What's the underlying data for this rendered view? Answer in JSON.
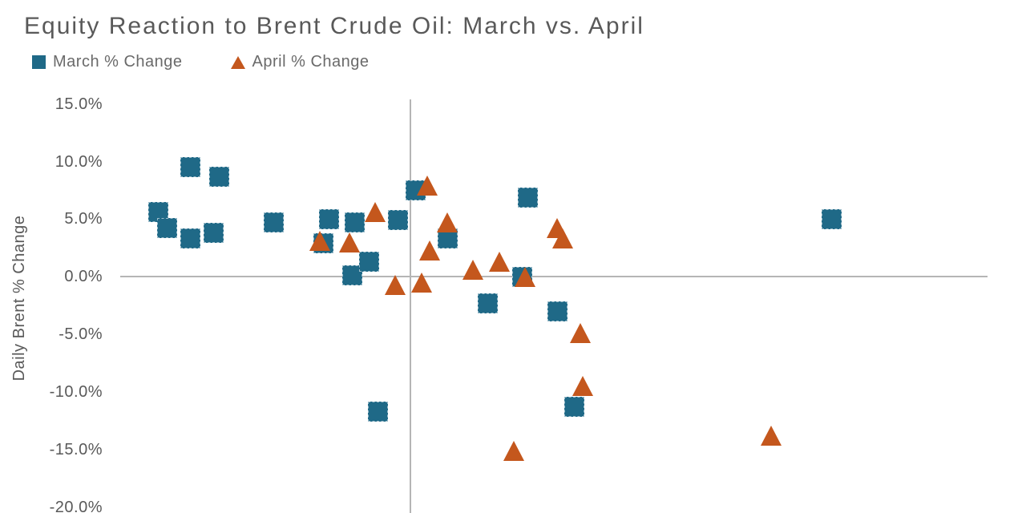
{
  "chart": {
    "title": "Equity Reaction to Brent Crude Oil: March vs. April",
    "y_axis_title": "Daily Brent % Change"
  },
  "legend": {
    "march_label": "March % Change",
    "april_label": "April % Change"
  },
  "colors": {
    "march_series": "#1F6987",
    "april_series": "#C4571D",
    "title_text": "#595959",
    "axis_text": "#595959",
    "gridline": "#B5B5B5"
  },
  "chart_data": {
    "type": "scatter",
    "title": "Equity Reaction to Brent Crude Oil: March vs. April",
    "xlabel": "",
    "ylabel": "Daily Brent % Change",
    "grid": false,
    "legend_position": "top-left",
    "x_axis": {
      "min": -10.3,
      "max": 20.0,
      "zero_gridline": true,
      "tick_labels_visible": false
    },
    "y_axis": {
      "min": -20.5,
      "max": 15.4,
      "zero_gridline": true,
      "ticks": [
        15,
        10,
        5,
        0,
        -5,
        -10,
        -15,
        -20
      ],
      "tick_labels": [
        "15.0%",
        "10.0%",
        "5.0%",
        "0.0%",
        "-5.0%",
        "-10.0%",
        "-15.0%",
        "-20.0%"
      ]
    },
    "series": [
      {
        "name": "March % Change",
        "marker": "square",
        "color": "#1F6987",
        "points": [
          {
            "x": -8.7,
            "y": 5.6
          },
          {
            "x": -8.4,
            "y": 4.2
          },
          {
            "x": -7.6,
            "y": 9.5
          },
          {
            "x": -7.6,
            "y": 3.3
          },
          {
            "x": -6.8,
            "y": 3.8
          },
          {
            "x": -6.6,
            "y": 8.7
          },
          {
            "x": -4.7,
            "y": 4.7
          },
          {
            "x": -3.0,
            "y": 2.9
          },
          {
            "x": -2.8,
            "y": 5.0
          },
          {
            "x": -2.0,
            "y": 0.1
          },
          {
            "x": -1.9,
            "y": 4.7
          },
          {
            "x": -1.4,
            "y": 1.3
          },
          {
            "x": -1.1,
            "y": -11.7
          },
          {
            "x": -0.4,
            "y": 4.9
          },
          {
            "x": 0.2,
            "y": 7.5
          },
          {
            "x": 1.3,
            "y": 3.3
          },
          {
            "x": 2.7,
            "y": -2.3
          },
          {
            "x": 3.9,
            "y": 0.0
          },
          {
            "x": 4.1,
            "y": 6.9
          },
          {
            "x": 5.1,
            "y": -3.0
          },
          {
            "x": 5.7,
            "y": -11.3
          },
          {
            "x": 14.6,
            "y": 5.0
          }
        ]
      },
      {
        "name": "April % Change",
        "marker": "triangle",
        "color": "#C4571D",
        "points": [
          {
            "x": -3.1,
            "y": 3.1
          },
          {
            "x": -2.1,
            "y": 3.0
          },
          {
            "x": -1.2,
            "y": 5.6
          },
          {
            "x": -0.5,
            "y": -0.7
          },
          {
            "x": 0.4,
            "y": -0.5
          },
          {
            "x": 0.6,
            "y": 7.9
          },
          {
            "x": 0.7,
            "y": 2.3
          },
          {
            "x": 1.3,
            "y": 4.7
          },
          {
            "x": 2.2,
            "y": 0.6
          },
          {
            "x": 3.1,
            "y": 1.3
          },
          {
            "x": 3.6,
            "y": -15.1
          },
          {
            "x": 4.0,
            "y": 0.0
          },
          {
            "x": 5.1,
            "y": 4.2
          },
          {
            "x": 5.3,
            "y": 3.3
          },
          {
            "x": 5.9,
            "y": -4.9
          },
          {
            "x": 6.0,
            "y": -9.5
          },
          {
            "x": 12.5,
            "y": -13.8
          }
        ]
      }
    ]
  }
}
